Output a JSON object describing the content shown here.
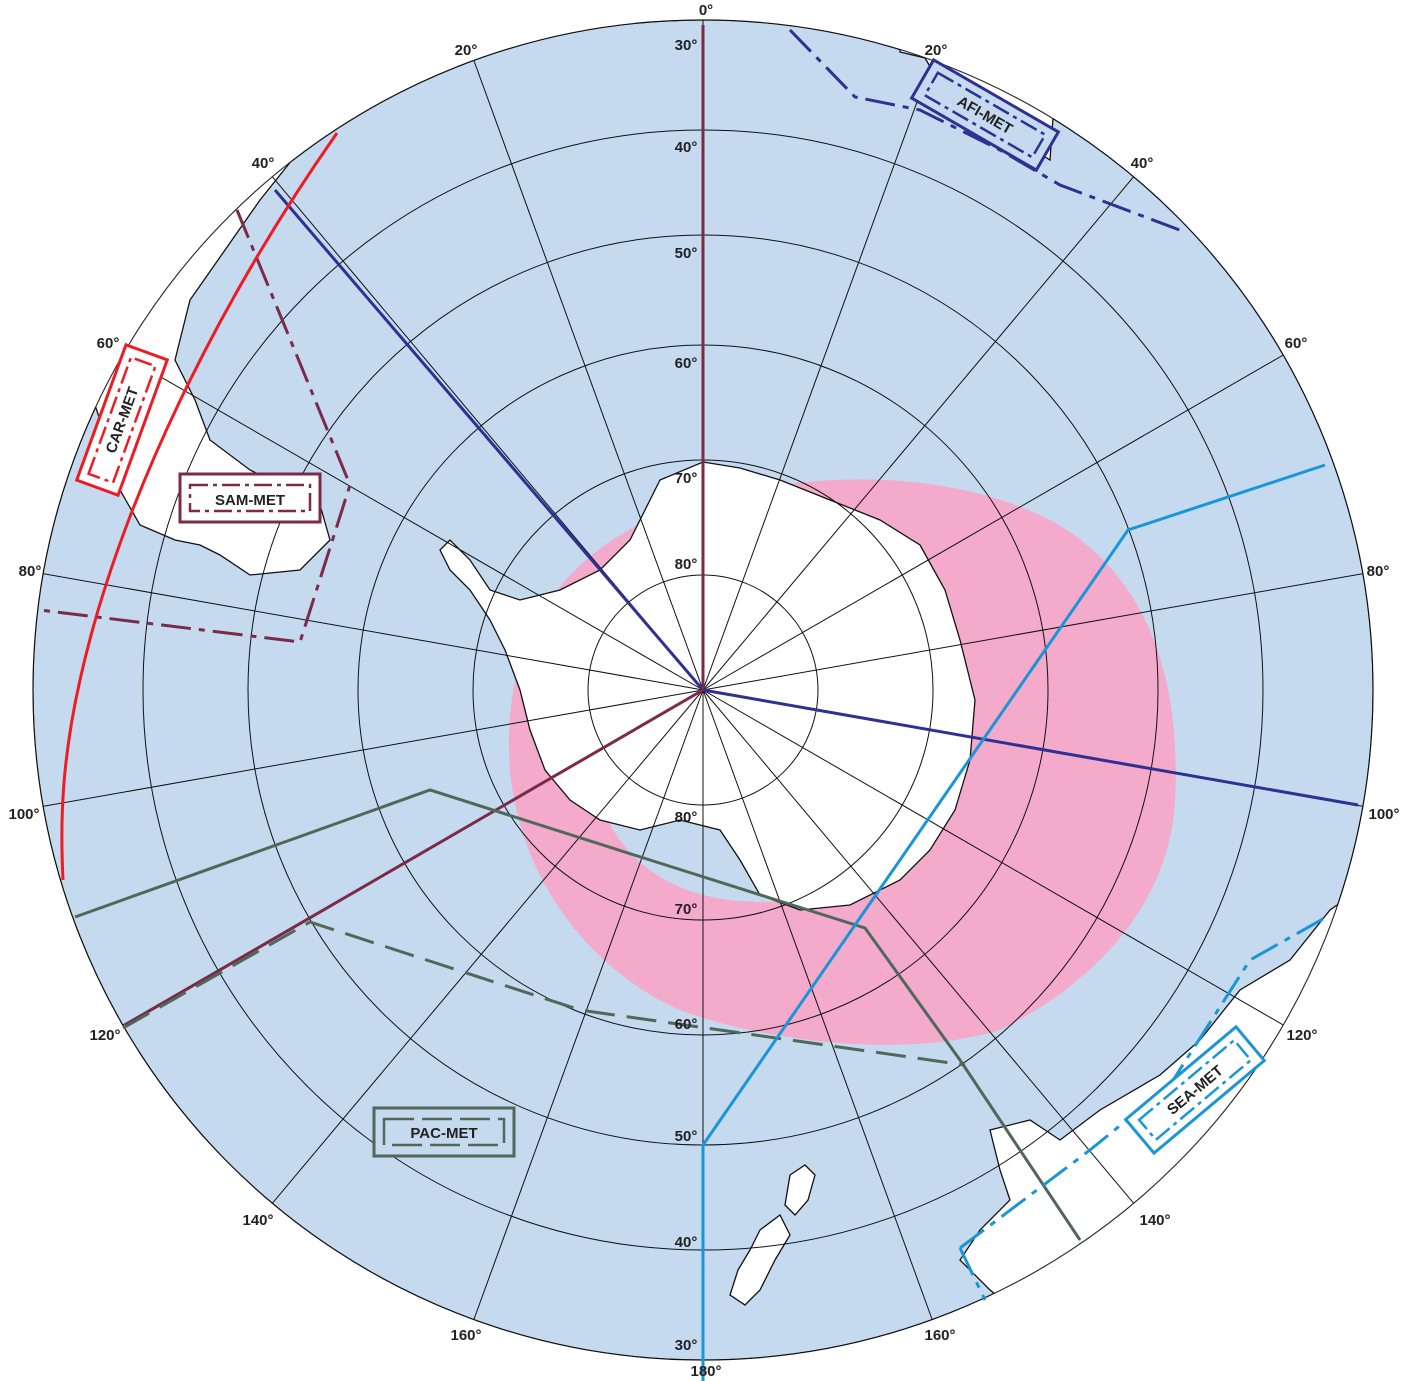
{
  "colors": {
    "ocean": "#c5d9ef",
    "land": "#ffffff",
    "pink_band": "#f3aacb",
    "light_pink": "#f8d3e2",
    "afi": "#2e3192",
    "car": "#ed1c24",
    "sam": "#7b2a48",
    "pac": "#50685a",
    "sea": "#1a96d6"
  },
  "longitude_labels": {
    "top": "0°",
    "bottom": "180°",
    "upper_right": "20°",
    "upper_left": "20°",
    "right_40": "40°",
    "left_40": "40°",
    "right_60": "60°",
    "left_60": "60°",
    "right_80": "80°",
    "left_80": "80°",
    "right_100": "100°",
    "left_100": "100°",
    "right_120": "120°",
    "left_120": "120°",
    "right_140": "140°",
    "left_140": "140°",
    "right_160": "160°",
    "left_160": "160°"
  },
  "latitude_labels_north": [
    "30°",
    "40°",
    "50°",
    "60°",
    "70°",
    "80°"
  ],
  "latitude_labels_south": [
    "80°",
    "70°",
    "60°",
    "50°",
    "40°",
    "30°"
  ],
  "regions": {
    "afi": "AFI-MET",
    "car": "CAR-MET",
    "sam": "SAM-MET",
    "pac": "PAC-MET",
    "sea": "SEA-MET"
  }
}
